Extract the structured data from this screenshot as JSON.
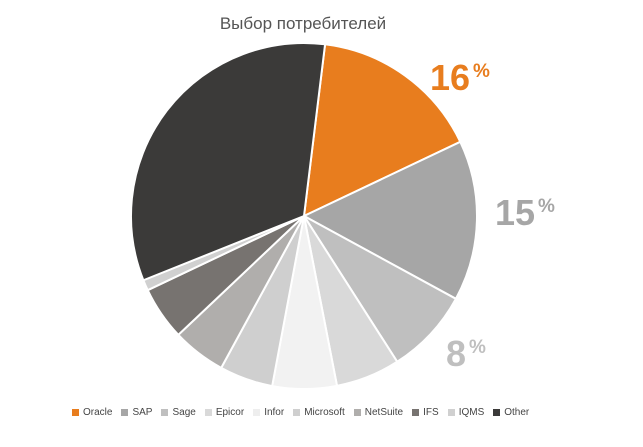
{
  "chart_data": {
    "type": "pie",
    "title": "Выбор потребителей",
    "legend_position": "bottom",
    "slices": [
      {
        "name": "Oracle",
        "value": 16,
        "color": "#e87d1e",
        "label": "16",
        "label_unit": "%"
      },
      {
        "name": "SAP",
        "value": 15,
        "color": "#a6a6a6",
        "label": "15",
        "label_unit": "%"
      },
      {
        "name": "Sage",
        "value": 8,
        "color": "#bfbfbf",
        "label": "8",
        "label_unit": "%"
      },
      {
        "name": "Epicor",
        "value": 6,
        "color": "#d9d9d9"
      },
      {
        "name": "Infor",
        "value": 6,
        "color": "#f2f2f2"
      },
      {
        "name": "Microsoft",
        "value": 5,
        "color": "#cfcfcf"
      },
      {
        "name": "NetSuite",
        "value": 5,
        "color": "#b0aeac"
      },
      {
        "name": "IFS",
        "value": 5,
        "color": "#777370"
      },
      {
        "name": "IQMS",
        "value": 1,
        "color": "#d0d0d0"
      },
      {
        "name": "Other",
        "value": 33,
        "color": "#3b3a39"
      }
    ]
  }
}
